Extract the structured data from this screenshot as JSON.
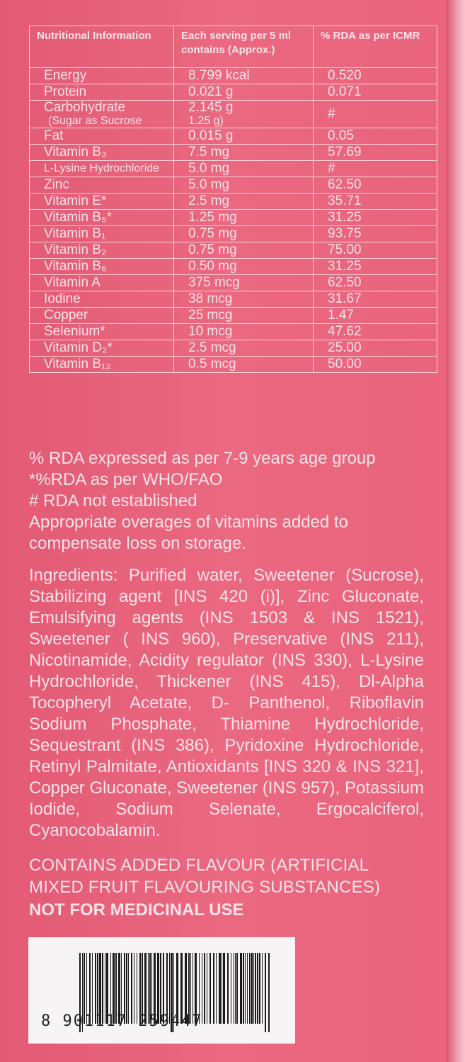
{
  "table": {
    "headers": [
      "Nutritional Information",
      "Each serving per 5 ml contains (Approx.)",
      "% RDA as per ICMR"
    ],
    "rows": [
      {
        "name": "Energy",
        "amount": "8.799 kcal",
        "rda": "0.520"
      },
      {
        "name": "Protein",
        "amount": "0.021 g",
        "rda": "0.071"
      },
      {
        "name": "Carbohydrate",
        "sub": "(Sugar as Sucrose",
        "amount": "2.145 g",
        "amount_sub": "1.25 g)",
        "rda": "#"
      },
      {
        "name": "Fat",
        "amount": "0.015 g",
        "rda": "0.05"
      },
      {
        "name": "Vitamin B₃",
        "amount": "7.5 mg",
        "rda": "57.69"
      },
      {
        "name": "L-Lysine Hydrochloride",
        "amount": "5.0  mg",
        "rda": "#"
      },
      {
        "name": "Zinc",
        "amount": "5.0 mg",
        "rda": "62.50"
      },
      {
        "name": "Vitamin E*",
        "amount": "2.5  mg",
        "rda": "35.71"
      },
      {
        "name": "Vitamin B₅*",
        "amount": "1.25 mg",
        "rda": "31.25"
      },
      {
        "name": "Vitamin B₁",
        "amount": "0.75 mg",
        "rda": "93.75"
      },
      {
        "name": "Vitamin B₂",
        "amount": "0.75 mg",
        "rda": "75.00"
      },
      {
        "name": "Vitamin B₆",
        "amount": "0.50 mg",
        "rda": "31.25"
      },
      {
        "name": "Vitamin A",
        "amount": "375 mcg",
        "rda": "62.50"
      },
      {
        "name": "Iodine",
        "amount": "38 mcg",
        "rda": "31.67"
      },
      {
        "name": "Copper",
        "amount": "25 mcg",
        "rda": "1.47"
      },
      {
        "name": "Selenium*",
        "amount": "10 mcg",
        "rda": "47.62"
      },
      {
        "name": "Vitamin D₂*",
        "amount": "2.5 mcg",
        "rda": "25.00"
      },
      {
        "name": "Vitamin B₁₂",
        "amount": "0.5 mcg",
        "rda": "50.00"
      }
    ]
  },
  "notes": [
    "% RDA expressed as per 7-9 years age group",
    "*%RDA as per WHO/FAO",
    "# RDA not established",
    "Appropriate overages of vitamins added to compensate loss on storage."
  ],
  "ingredients": "Ingredients: Purified water, Sweetener (Sucrose), Stabilizing agent [INS 420 (i)], Zinc Gluconate, Emulsifying agents (INS 1503 & INS 1521), Sweetener ( INS 960), Preservative (INS 211), Nicotinamide, Acidity regulator (INS 330), L-Lysine Hydrochloride, Thickener (INS 415), Dl-Alpha Tocopheryl Acetate, D- Panthenol, Riboflavin Sodium Phosphate, Thiamine Hydrochloride, Sequestrant (INS 386), Pyridoxine Hydrochloride, Retinyl Palmitate, Antioxidants [INS 320 & INS 321], Copper Gluconate, Sweetener (INS 957), Potassium Iodide, Sodium Selenate, Ergocalciferol, Cyanocobalamin.",
  "flavour": "CONTAINS ADDED FLAVOUR (ARTIFICIAL MIXED FRUIT FLAVOURING SUBSTANCES)",
  "not_medicinal": "NOT FOR MEDICINAL USE",
  "barcode": "8 901117 259447",
  "colors": {
    "background": "#e9637c",
    "text": "#fbe3e8",
    "rule": "#f8d2da"
  }
}
